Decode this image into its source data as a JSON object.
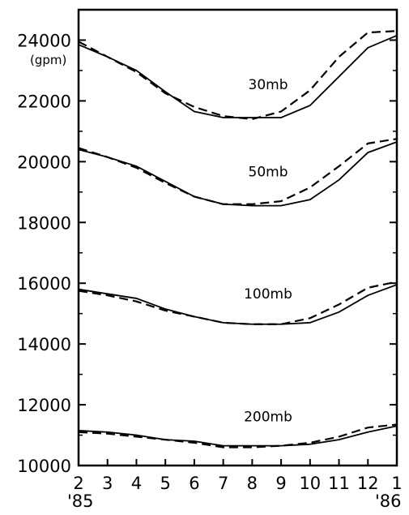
{
  "chart_data": {
    "type": "line",
    "title": "",
    "xlabel": "",
    "ylabel": "",
    "unit_label": "(gpm)",
    "x": [
      2,
      3,
      4,
      5,
      6,
      7,
      8,
      9,
      10,
      11,
      12,
      1
    ],
    "x_tick_labels": [
      "2",
      "3",
      "4",
      "5",
      "6",
      "7",
      "8",
      "9",
      "10",
      "11",
      "12",
      "1"
    ],
    "year_labels": {
      "start": "'85",
      "end": "'86"
    },
    "ylim": [
      10000,
      25000
    ],
    "y_ticks": [
      10000,
      12000,
      14000,
      16000,
      18000,
      20000,
      22000,
      24000
    ],
    "grid": false,
    "line_styles": {
      "solid": "#000000",
      "dashed": "#000000"
    },
    "groups": [
      {
        "label": "30mb",
        "solid": [
          23850,
          23450,
          23000,
          22300,
          21650,
          21450,
          21450,
          21450,
          21850,
          22800,
          23750,
          24150
        ],
        "dashed": [
          23950,
          23450,
          22950,
          22250,
          21800,
          21500,
          21400,
          21650,
          22350,
          23450,
          24250,
          24300
        ]
      },
      {
        "label": "50mb",
        "solid": [
          20400,
          20150,
          19850,
          19350,
          18850,
          18600,
          18550,
          18550,
          18750,
          19400,
          20300,
          20650
        ],
        "dashed": [
          20450,
          20150,
          19800,
          19300,
          18850,
          18600,
          18600,
          18700,
          19150,
          19850,
          20600,
          20750
        ]
      },
      {
        "label": "100mb",
        "solid": [
          15800,
          15650,
          15500,
          15150,
          14900,
          14700,
          14650,
          14650,
          14700,
          15050,
          15600,
          15950
        ],
        "dashed": [
          15750,
          15600,
          15400,
          15100,
          14900,
          14700,
          14650,
          14650,
          14850,
          15300,
          15850,
          16050
        ]
      },
      {
        "label": "200mb",
        "solid": [
          11150,
          11100,
          11000,
          10850,
          10800,
          10650,
          10650,
          10650,
          10700,
          10850,
          11100,
          11300
        ],
        "dashed": [
          11100,
          11050,
          10950,
          10850,
          10750,
          10600,
          10600,
          10650,
          10750,
          10950,
          11250,
          11350
        ]
      }
    ]
  }
}
